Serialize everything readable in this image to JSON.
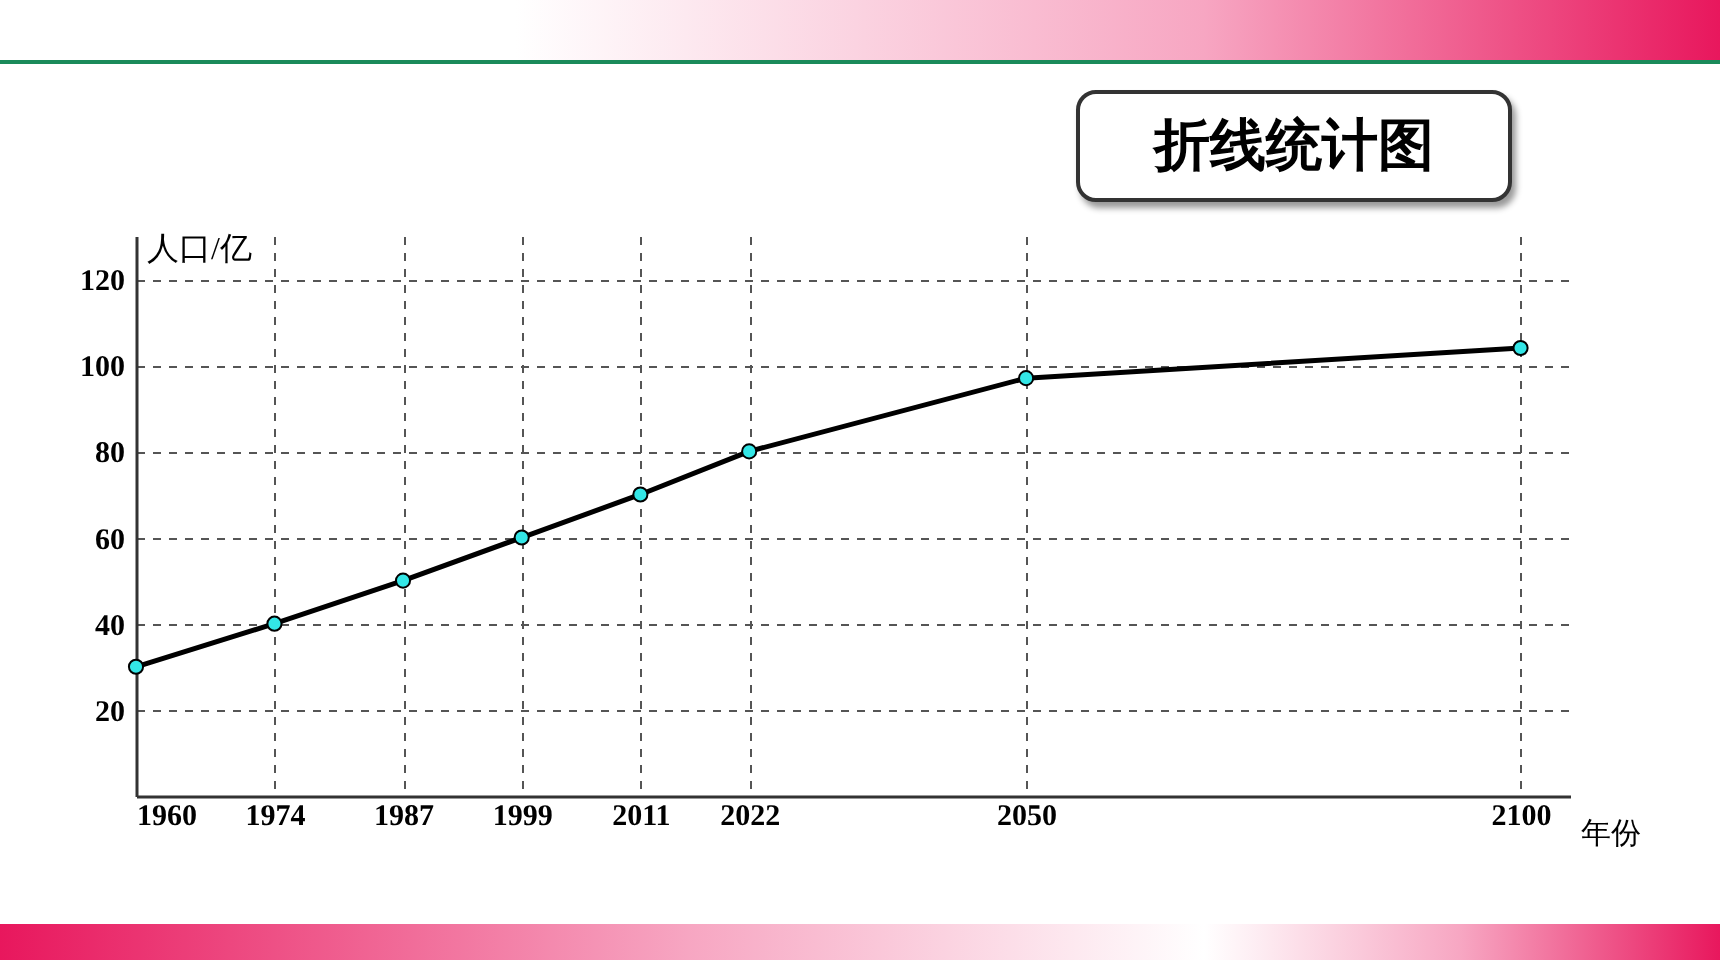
{
  "chart_data": {
    "type": "line",
    "title": "折线统计图",
    "xlabel": "年份",
    "ylabel": "人口/亿",
    "x": [
      1960,
      1974,
      1987,
      1999,
      2011,
      2022,
      2050,
      2100
    ],
    "series": [
      {
        "color": "#000000",
        "values": [
          30,
          40,
          50,
          60,
          70,
          80,
          97,
          104
        ]
      }
    ],
    "xlim": [
      1960,
      2105
    ],
    "xticks": [
      1960,
      1974,
      1987,
      1999,
      2011,
      2022,
      2050,
      2100
    ],
    "ylim": [
      0,
      130
    ],
    "yticks": [
      20,
      40,
      60,
      80,
      100,
      120
    ],
    "grid": true,
    "marker": "circle",
    "line_style": "solid"
  }
}
